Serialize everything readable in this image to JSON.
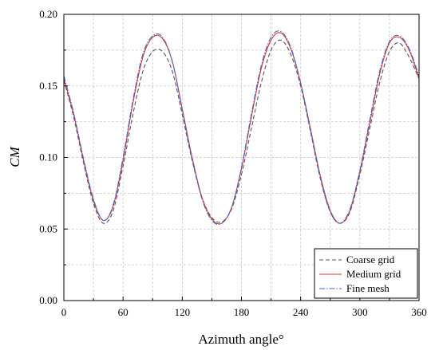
{
  "chart_data": {
    "type": "line",
    "title": "",
    "xlabel": "Azimuth angle°",
    "ylabel": "CM",
    "xlim": [
      0,
      360
    ],
    "ylim": [
      0.0,
      0.2
    ],
    "xticks": [
      0,
      60,
      120,
      180,
      240,
      300,
      360
    ],
    "yticks": [
      0.0,
      0.05,
      0.1,
      0.15,
      0.2
    ],
    "ytick_labels": [
      "0.00",
      "0.05",
      "0.10",
      "0.15",
      "0.20"
    ],
    "grid": true,
    "legend_position": "bottom-right",
    "series": [
      {
        "name": "Coarse grid",
        "color": "#555555",
        "dash": "dashed",
        "x": [
          0,
          10,
          20,
          30,
          40,
          50,
          60,
          70,
          80,
          90,
          100,
          110,
          120,
          130,
          140,
          150,
          160,
          170,
          180,
          190,
          200,
          210,
          220,
          230,
          240,
          250,
          260,
          270,
          280,
          290,
          300,
          310,
          320,
          330,
          340,
          350,
          360
        ],
        "values": [
          0.154,
          0.128,
          0.096,
          0.068,
          0.054,
          0.063,
          0.094,
          0.13,
          0.16,
          0.174,
          0.174,
          0.16,
          0.13,
          0.098,
          0.072,
          0.058,
          0.055,
          0.064,
          0.088,
          0.12,
          0.152,
          0.175,
          0.182,
          0.172,
          0.15,
          0.118,
          0.085,
          0.062,
          0.054,
          0.062,
          0.088,
          0.12,
          0.152,
          0.174,
          0.18,
          0.17,
          0.155
        ]
      },
      {
        "name": "Medium grid",
        "color": "#e03030",
        "dash": "solid",
        "x": [
          0,
          10,
          20,
          30,
          40,
          50,
          60,
          70,
          80,
          90,
          100,
          110,
          120,
          130,
          140,
          150,
          160,
          170,
          180,
          190,
          200,
          210,
          220,
          230,
          240,
          250,
          260,
          270,
          280,
          290,
          300,
          310,
          320,
          330,
          340,
          350,
          360
        ],
        "values": [
          0.155,
          0.13,
          0.098,
          0.07,
          0.056,
          0.066,
          0.098,
          0.138,
          0.17,
          0.184,
          0.183,
          0.167,
          0.134,
          0.1,
          0.072,
          0.057,
          0.054,
          0.065,
          0.092,
          0.128,
          0.162,
          0.182,
          0.187,
          0.176,
          0.152,
          0.12,
          0.087,
          0.063,
          0.054,
          0.063,
          0.09,
          0.124,
          0.158,
          0.18,
          0.184,
          0.175,
          0.155
        ]
      },
      {
        "name": "Fine mesh",
        "color": "#3a6ad4",
        "dash": "dashdot",
        "x": [
          0,
          10,
          20,
          30,
          40,
          50,
          60,
          70,
          80,
          90,
          100,
          110,
          120,
          130,
          140,
          150,
          160,
          170,
          180,
          190,
          200,
          210,
          220,
          230,
          240,
          250,
          260,
          270,
          280,
          290,
          300,
          310,
          320,
          330,
          340,
          350,
          360
        ],
        "values": [
          0.157,
          0.131,
          0.099,
          0.071,
          0.056,
          0.067,
          0.1,
          0.14,
          0.172,
          0.185,
          0.184,
          0.167,
          0.133,
          0.099,
          0.071,
          0.056,
          0.054,
          0.065,
          0.093,
          0.13,
          0.164,
          0.184,
          0.188,
          0.177,
          0.152,
          0.119,
          0.086,
          0.062,
          0.054,
          0.064,
          0.091,
          0.126,
          0.16,
          0.181,
          0.185,
          0.176,
          0.157
        ]
      }
    ]
  }
}
